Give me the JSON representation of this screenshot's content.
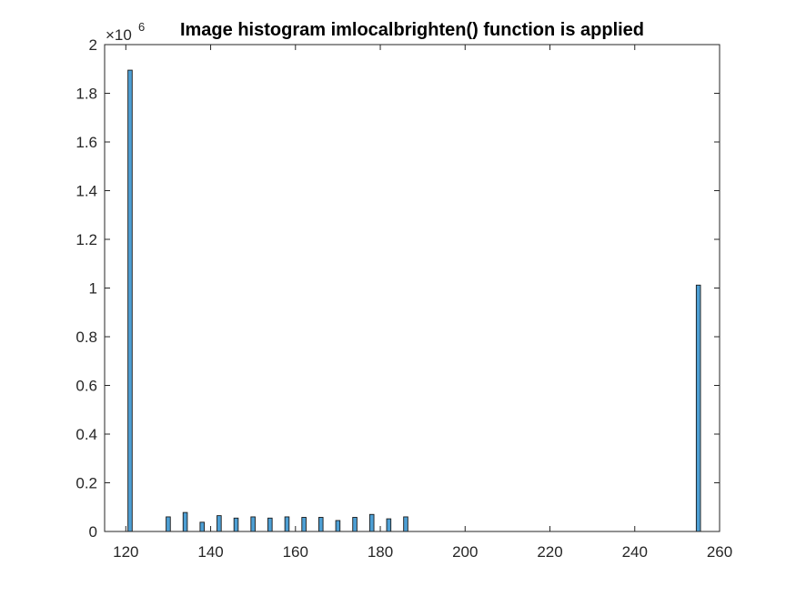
{
  "chart_data": {
    "type": "bar",
    "title": "Image histogram imlocalbrighten() function is applied",
    "xlabel": "",
    "ylabel": "",
    "xlim": [
      115,
      260
    ],
    "ylim": [
      0,
      2000000
    ],
    "x_ticks": [
      120,
      140,
      160,
      180,
      200,
      220,
      240,
      260
    ],
    "y_ticks": [
      0,
      200000,
      400000,
      600000,
      800000,
      1000000,
      1200000,
      1400000,
      1600000,
      1800000,
      2000000
    ],
    "y_tick_labels": [
      "0",
      "0.2",
      "0.4",
      "0.6",
      "0.8",
      "1",
      "1.2",
      "1.4",
      "1.6",
      "1.8",
      "2"
    ],
    "y_exponent_label": "×10",
    "y_exponent_power": "6",
    "bar_color": "#4d9fd4",
    "bar_edge_color": "#1a1a1a",
    "grid": false,
    "bars": [
      {
        "x": 121,
        "y": 1895000
      },
      {
        "x": 130,
        "y": 60000
      },
      {
        "x": 134,
        "y": 78000
      },
      {
        "x": 138,
        "y": 38000
      },
      {
        "x": 142,
        "y": 65000
      },
      {
        "x": 146,
        "y": 55000
      },
      {
        "x": 150,
        "y": 60000
      },
      {
        "x": 154,
        "y": 55000
      },
      {
        "x": 158,
        "y": 60000
      },
      {
        "x": 162,
        "y": 58000
      },
      {
        "x": 166,
        "y": 58000
      },
      {
        "x": 170,
        "y": 45000
      },
      {
        "x": 174,
        "y": 58000
      },
      {
        "x": 178,
        "y": 70000
      },
      {
        "x": 182,
        "y": 52000
      },
      {
        "x": 186,
        "y": 60000
      },
      {
        "x": 255,
        "y": 1012000
      }
    ],
    "bin_width": 1
  }
}
